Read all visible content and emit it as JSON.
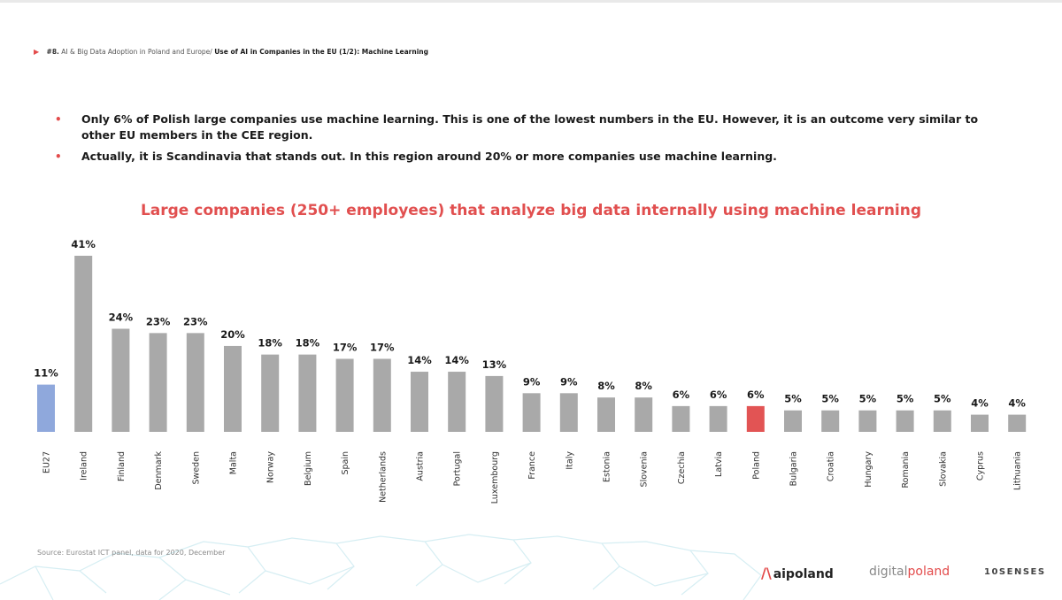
{
  "breadcrumb": {
    "number": "#8.",
    "section": "AI & Big Data Adoption in Poland and Europe/",
    "page": "Use of AI in Companies in the EU (1/2): Machine Learning"
  },
  "bullets": [
    "Only 6% of Polish large companies use machine learning. This is one of the lowest numbers in the EU. However, it is an outcome very similar to other EU members in the CEE region.",
    "Actually, it is Scandinavia that stands out. In this region around 20% or more companies use machine learning."
  ],
  "chart_data": {
    "type": "bar",
    "title": "Large companies (250+ employees) that analyze big data internally using machine learning",
    "categories": [
      "EU27",
      "Ireland",
      "Finland",
      "Denmark",
      "Sweden",
      "Malta",
      "Norway",
      "Belgium",
      "Spain",
      "Netherlands",
      "Austria",
      "Portugal",
      "Luxembourg",
      "France",
      "Italy",
      "Estonia",
      "Slovenia",
      "Czechia",
      "Latvia",
      "Poland",
      "Bulgaria",
      "Croatia",
      "Hungary",
      "Romania",
      "Slovakia",
      "Cyprus",
      "Lithuania"
    ],
    "values": [
      11,
      41,
      24,
      23,
      23,
      20,
      18,
      18,
      17,
      17,
      14,
      14,
      13,
      9,
      9,
      8,
      8,
      6,
      6,
      6,
      5,
      5,
      5,
      5,
      5,
      4,
      4
    ],
    "value_labels": [
      "11%",
      "41%",
      "24%",
      "23%",
      "23%",
      "20%",
      "18%",
      "18%",
      "17%",
      "17%",
      "14%",
      "14%",
      "13%",
      "9%",
      "9%",
      "8%",
      "8%",
      "6%",
      "6%",
      "6%",
      "5%",
      "5%",
      "5%",
      "5%",
      "5%",
      "4%",
      "4%"
    ],
    "ylim": [
      0,
      41
    ],
    "grid": false,
    "legend": "none",
    "colors": {
      "default": "#a9a9a9",
      "EU27": "#8fa8dc",
      "Poland": "#e25454"
    }
  },
  "source": "Source: Eurostat ICT panel, data for 2020, December",
  "logos": {
    "aipoland_mark": "/\\",
    "aipoland": "aipoland",
    "digitalpoland_a": "digital",
    "digitalpoland_b": "poland",
    "tensenses": "10SENSES"
  }
}
